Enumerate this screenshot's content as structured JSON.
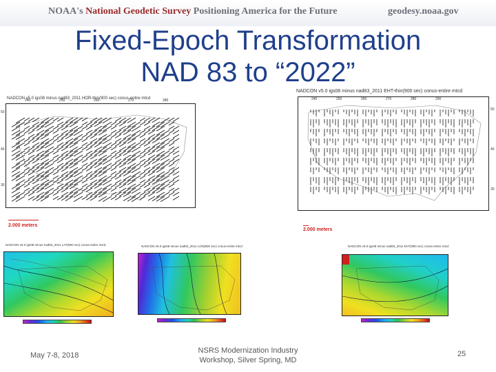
{
  "header": {
    "agency_prefix": "NOAA's ",
    "agency_name": "National Geodetic Survey",
    "tagline": " Positioning America for the Future",
    "website": "geodesy.noaa.gov"
  },
  "slide": {
    "title_line1": "Fixed-Epoch Transformation",
    "title_line2": "NAD 83 to “2022”"
  },
  "maps": {
    "horizontal": {
      "caption": "NADCON v5.0 igs08 minus nad83_2011 HOR-thin(900 sec) conus-entire mtcd",
      "scale_label": "2.000 meters",
      "lon_ticks": [
        "240",
        "250",
        "260",
        "270",
        "280",
        "290"
      ],
      "lat_ticks": [
        "50",
        "40",
        "30"
      ]
    },
    "vertical": {
      "caption": "NADCON v5.0 igs08 minus nad83_2011 EHT-thin(900 sec) conus-entire mtcd",
      "scale_label": "2.000 meters",
      "lon_ticks": [
        "240",
        "250",
        "260",
        "270",
        "280",
        "290"
      ],
      "lat_ticks": [
        "50",
        "40",
        "30"
      ]
    },
    "contour_maps": [
      {
        "caption": "NADCON v5.0 igs08 minus nad83_2011 LAT(900 sec) conus-entire mtcd"
      },
      {
        "caption": "NADCON v5.0 igs08 minus nad83_2011 LON(900 sec) conus-entire mtcd"
      },
      {
        "caption": "NADCON v5.0 igs08 minus nad83_2011 EHT(900 sec) conus-entire mtcd"
      }
    ]
  },
  "footer": {
    "date": "May 7-8, 2018",
    "event_line1": "NSRS Modernization Industry",
    "event_line2": "Workshop, Silver Spring, MD",
    "page_number": "25"
  },
  "colors": {
    "title": "#1f3f8c",
    "agency_name": "#9a2a2a",
    "scale": "#cc2222"
  }
}
